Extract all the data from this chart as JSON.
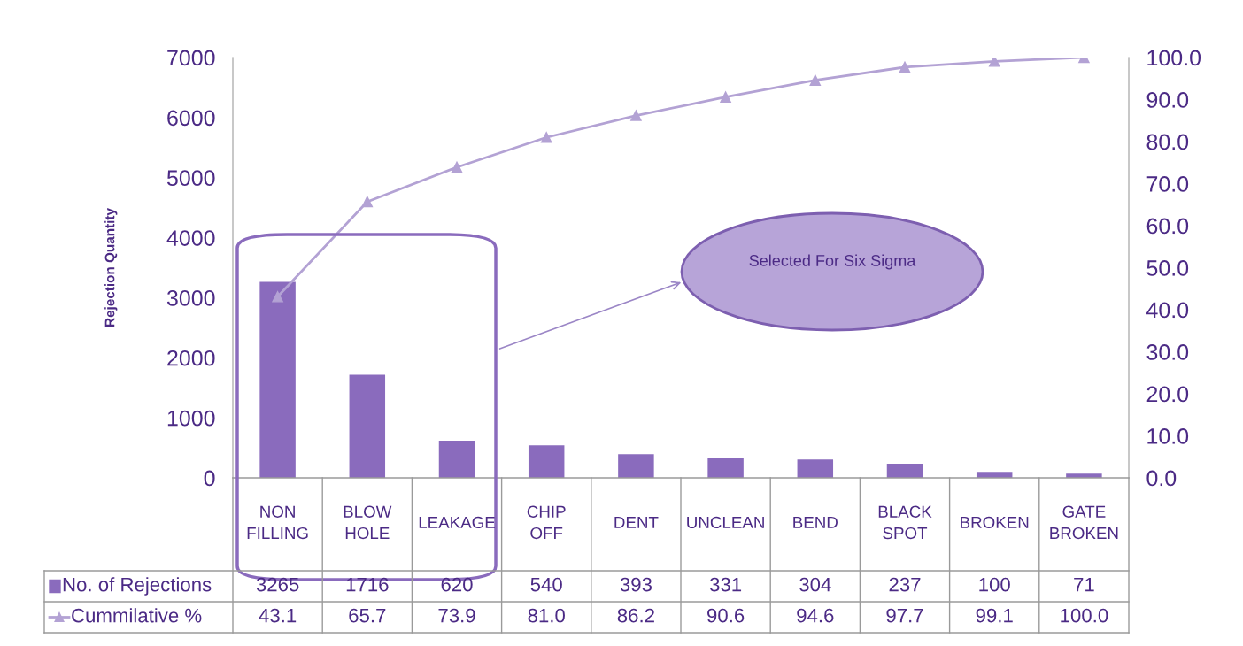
{
  "chart_data": {
    "type": "bar",
    "ylabel": "Rejection Quantity",
    "categories": [
      "NON FILLING",
      "BLOW HOLE",
      "LEAKAGE",
      "CHIP OFF",
      "DENT",
      "UNCLEAN",
      "BEND",
      "BLACK SPOT",
      "BROKEN",
      "GATE BROKEN"
    ],
    "series": [
      {
        "name": "No. of Rejections",
        "color": "#8a6bbd",
        "values": [
          3265,
          1716,
          620,
          540,
          393,
          331,
          304,
          237,
          100,
          71
        ],
        "value_labels": [
          "3265",
          "1716",
          "620",
          "540",
          "393",
          "331",
          "304",
          "237",
          "100",
          "71"
        ]
      },
      {
        "name": "Cummilative %",
        "type": "line",
        "axis": "y2",
        "color": "#b3a2d4",
        "marker": "triangle",
        "values": [
          43.1,
          65.7,
          73.9,
          81.0,
          86.2,
          90.6,
          94.6,
          97.7,
          99.1,
          100.0
        ],
        "value_labels": [
          "43.1",
          "65.7",
          "73.9",
          "81.0",
          "86.2",
          "90.6",
          "94.6",
          "97.7",
          "99.1",
          "100.0"
        ]
      }
    ],
    "ylim": [
      0,
      7000
    ],
    "yticks": [
      0,
      1000,
      2000,
      3000,
      4000,
      5000,
      6000,
      7000
    ],
    "y2lim": [
      0,
      100
    ],
    "y2ticks": [
      {
        "value": 0,
        "label": "0.0"
      },
      {
        "value": 10,
        "label": "10.0"
      },
      {
        "value": 20,
        "label": "20.0"
      },
      {
        "value": 30,
        "label": "30.0"
      },
      {
        "value": 40,
        "label": "40.0"
      },
      {
        "value": 50,
        "label": "50.0"
      },
      {
        "value": 60,
        "label": "60.0"
      },
      {
        "value": 70,
        "label": "70.0"
      },
      {
        "value": 80,
        "label": "80.0"
      },
      {
        "value": 90,
        "label": "90.0"
      },
      {
        "value": 100,
        "label": "100.0"
      }
    ],
    "annotations": [
      "Selected For Six Sigma"
    ],
    "legend": "bottom",
    "grid": false
  }
}
